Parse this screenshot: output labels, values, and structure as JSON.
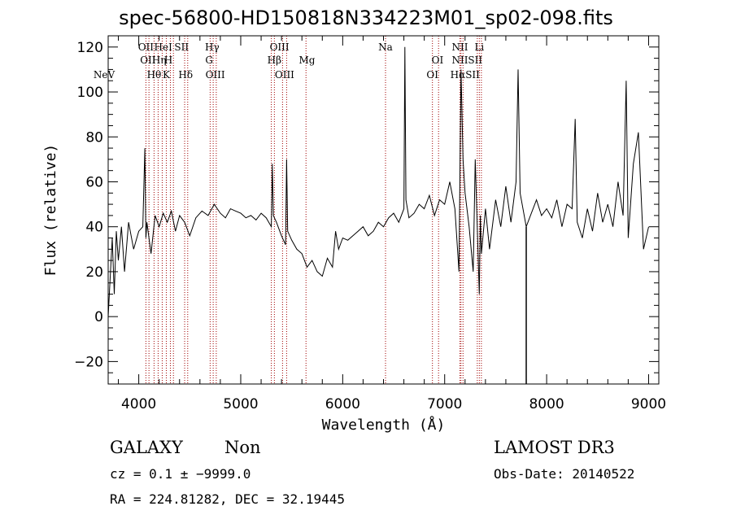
{
  "chart_data": {
    "type": "line",
    "title": "spec-56800-HD150818N334223M01_sp02-098.fits",
    "xlabel": "Wavelength (Å)",
    "ylabel": "Flux (relative)",
    "xlim": [
      3700,
      9100
    ],
    "ylim": [
      -30,
      125
    ],
    "x_ticks": [
      4000,
      5000,
      6000,
      7000,
      8000,
      9000
    ],
    "y_ticks": [
      -20,
      0,
      20,
      40,
      60,
      80,
      100,
      120
    ],
    "series": [
      {
        "name": "spectrum",
        "x": [
          3700,
          3740,
          3760,
          3780,
          3800,
          3830,
          3860,
          3900,
          3950,
          4000,
          4040,
          4060,
          4070,
          4080,
          4120,
          4160,
          4200,
          4240,
          4280,
          4320,
          4360,
          4400,
          4450,
          4500,
          4560,
          4620,
          4680,
          4740,
          4800,
          4850,
          4900,
          4950,
          5000,
          5050,
          5100,
          5150,
          5200,
          5250,
          5300,
          5310,
          5320,
          5350,
          5400,
          5440,
          5450,
          5460,
          5500,
          5550,
          5600,
          5650,
          5700,
          5750,
          5800,
          5850,
          5900,
          5930,
          5960,
          6000,
          6050,
          6100,
          6150,
          6200,
          6250,
          6300,
          6350,
          6400,
          6450,
          6500,
          6550,
          6600,
          6610,
          6620,
          6650,
          6700,
          6750,
          6800,
          6850,
          6900,
          6950,
          7000,
          7050,
          7100,
          7140,
          7160,
          7180,
          7200,
          7240,
          7280,
          7300,
          7340,
          7350,
          7360,
          7400,
          7440,
          7500,
          7550,
          7600,
          7650,
          7700,
          7720,
          7740,
          7800,
          7850,
          7900,
          7950,
          8000,
          8050,
          8100,
          8150,
          8200,
          8250,
          8280,
          8300,
          8350,
          8400,
          8450,
          8500,
          8550,
          8600,
          8650,
          8700,
          8750,
          8780,
          8800,
          8850,
          8900,
          8950,
          9000
        ],
        "y": [
          0,
          35,
          10,
          38,
          25,
          40,
          20,
          42,
          30,
          38,
          40,
          75,
          35,
          42,
          28,
          45,
          40,
          46,
          42,
          47,
          38,
          45,
          42,
          36,
          44,
          47,
          45,
          50,
          46,
          44,
          48,
          47,
          46,
          44,
          45,
          43,
          46,
          44,
          40,
          68,
          45,
          42,
          36,
          32,
          70,
          38,
          34,
          30,
          28,
          22,
          25,
          20,
          18,
          26,
          22,
          38,
          30,
          35,
          34,
          36,
          38,
          40,
          36,
          38,
          42,
          40,
          44,
          46,
          42,
          48,
          120,
          52,
          44,
          46,
          50,
          48,
          54,
          45,
          52,
          50,
          60,
          48,
          20,
          110,
          70,
          55,
          40,
          20,
          70,
          10,
          45,
          28,
          48,
          30,
          52,
          40,
          58,
          42,
          60,
          110,
          55,
          40,
          46,
          52,
          45,
          48,
          44,
          52,
          40,
          50,
          48,
          88,
          42,
          35,
          48,
          38,
          55,
          42,
          50,
          40,
          60,
          45,
          105,
          35,
          68,
          82,
          30,
          40
        ]
      }
    ],
    "line_markers": [
      {
        "label": "NeV",
        "x": 3660,
        "row": 2
      },
      {
        "label": "OII",
        "x": 4070,
        "row": 0
      },
      {
        "label": "OII",
        "x": 4090,
        "row": 1
      },
      {
        "label": "Hθ",
        "x": 4150,
        "row": 2
      },
      {
        "label": "Hη",
        "x": 4200,
        "row": 1
      },
      {
        "label": "HeI",
        "x": 4240,
        "row": 0
      },
      {
        "label": "H",
        "x": 4290,
        "row": 1
      },
      {
        "label": "K",
        "x": 4270,
        "row": 2
      },
      {
        "label": "SII",
        "x": 4420,
        "row": 0
      },
      {
        "label": "Hδ",
        "x": 4460,
        "row": 2
      },
      {
        "label": "Hγ",
        "x": 4720,
        "row": 0
      },
      {
        "label": "G",
        "x": 4690,
        "row": 1
      },
      {
        "label": "OIII",
        "x": 4750,
        "row": 2
      },
      {
        "label": "OIII",
        "x": 5380,
        "row": 0
      },
      {
        "label": "Hβ",
        "x": 5330,
        "row": 1
      },
      {
        "label": "OIII",
        "x": 5430,
        "row": 2
      },
      {
        "label": "Mg",
        "x": 5650,
        "row": 1
      },
      {
        "label": "Na",
        "x": 6420,
        "row": 0
      },
      {
        "label": "OI",
        "x": 6930,
        "row": 1
      },
      {
        "label": "OI",
        "x": 6880,
        "row": 2
      },
      {
        "label": "NII",
        "x": 7150,
        "row": 0
      },
      {
        "label": "NIISII",
        "x": 7220,
        "row": 1
      },
      {
        "label": "HαSII",
        "x": 7200,
        "row": 2
      },
      {
        "label": "Li",
        "x": 7340,
        "row": 0
      }
    ],
    "marker_lines_x": [
      4070,
      4100,
      4150,
      4190,
      4230,
      4270,
      4310,
      4340,
      4450,
      4480,
      4700,
      4730,
      4760,
      5300,
      5330,
      5410,
      5450,
      5640,
      6420,
      6880,
      6940,
      7150,
      7160,
      7180,
      7320,
      7340,
      7360
    ]
  },
  "info": {
    "object_type": "GALAXY",
    "subclass": "Non",
    "survey": "LAMOST DR3",
    "cz": "cz = 0.1 ± −9999.0",
    "obs_date": "Obs-Date: 20140522",
    "radec": "RA = 224.81282, DEC =  32.19445"
  }
}
